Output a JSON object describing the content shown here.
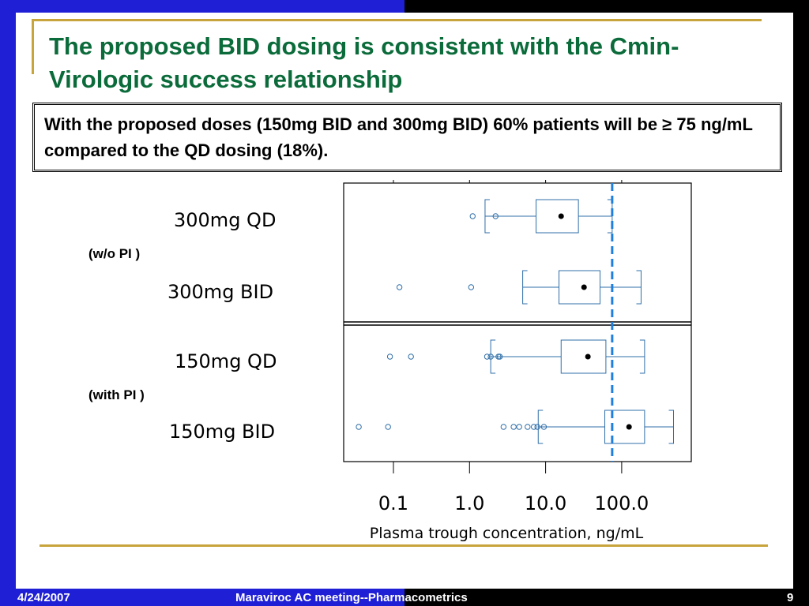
{
  "title": "The proposed BID dosing is consistent with the Cmin-Virologic success relationship",
  "callout": "With the proposed doses (150mg BID and 300mg BID) 60% patients will be ≥ 75 ng/mL compared to the QD dosing (18%).",
  "footer": {
    "date": "4/24/2007",
    "meeting_prefix": "Maraviroc AC meeting--",
    "meeting_suffix": "Pharmacometrics",
    "page": "9"
  },
  "group_labels": {
    "wo_pi": "(w/o PI )",
    "with_pi": "(with PI )"
  },
  "colors": {
    "accent_gold": "#c8a43c",
    "title_green": "#0b6b3a",
    "box_blue": "#2f6fa8",
    "threshold_blue": "#1e7fe0",
    "bar_blue": "#1f1fd6"
  },
  "chart_data": {
    "type": "box",
    "xlabel": "Plasma trough concentration, ng/mL",
    "ylabel": "",
    "xscale": "log",
    "xlim": [
      0.01,
      1000
    ],
    "xticks": [
      0.1,
      1.0,
      10.0,
      100.0
    ],
    "xtick_labels": [
      "0.1",
      "1.0",
      "10.0",
      "100.0"
    ],
    "threshold": 75,
    "threshold_style": "dashed",
    "categories": [
      "300mg QD",
      "300mg BID",
      "150mg QD",
      "150mg BID"
    ],
    "series": [
      {
        "name": "300mg QD",
        "whisker_low": 1.6,
        "q1": 7.5,
        "median": 16,
        "q3": 27,
        "whisker_high": 75,
        "outliers": [
          1.1,
          2.2
        ]
      },
      {
        "name": "300mg BID",
        "whisker_low": 5,
        "q1": 15,
        "median": 32,
        "q3": 52,
        "whisker_high": 180,
        "outliers": [
          0.12,
          1.05
        ]
      },
      {
        "name": "150mg QD",
        "whisker_low": 1.9,
        "q1": 16,
        "median": 36,
        "q3": 62,
        "whisker_high": 200,
        "outliers": [
          0.09,
          0.17,
          1.7,
          1.9,
          2.4,
          2.5
        ]
      },
      {
        "name": "150mg BID",
        "whisker_low": 8,
        "q1": 60,
        "median": 125,
        "q3": 200,
        "whisker_high": 480,
        "outliers": [
          0.035,
          0.085,
          2.8,
          3.8,
          4.5,
          5.8,
          7.0,
          7.8,
          9.5
        ]
      }
    ]
  }
}
